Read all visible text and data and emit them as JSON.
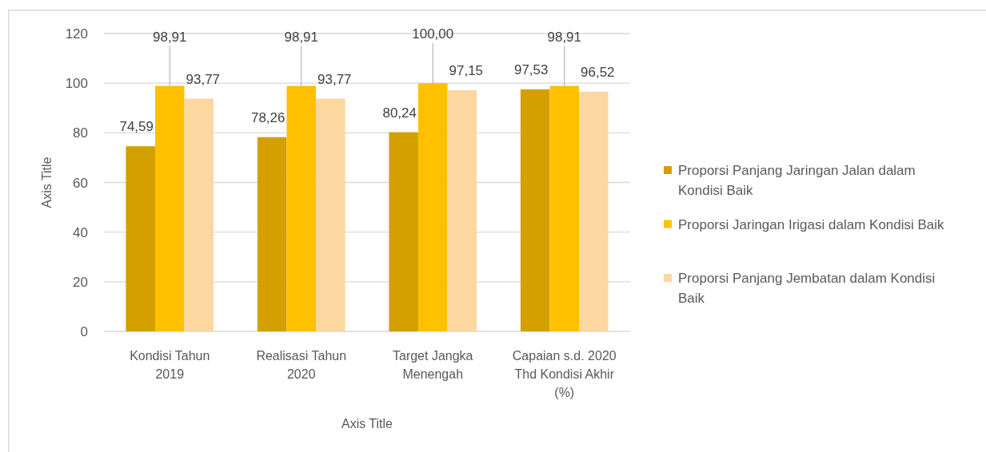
{
  "chart_data": {
    "type": "bar",
    "xlabel": "Axis Title",
    "ylabel": "Axis Title",
    "categories": [
      "Kondisi Tahun 2019",
      "Realisasi Tahun 2020",
      "Target Jangka Menengah",
      "Capaian s.d. 2020 Thd Kondisi Akhir (%)"
    ],
    "series": [
      {
        "name": "Proporsi Panjang Jaringan Jalan dalam Kondisi Baik",
        "color": "#d4a000",
        "values": [
          74.59,
          78.26,
          80.24,
          97.53
        ],
        "value_labels": [
          "74,59",
          "78,26",
          "80,24",
          "97,53"
        ]
      },
      {
        "name": "Proporsi Jaringan Irigasi dalam Kondisi Baik",
        "color": "#ffc000",
        "values": [
          98.91,
          98.91,
          100,
          98.91
        ],
        "value_labels": [
          "98,91",
          "98,91",
          "100,00",
          "98,91"
        ]
      },
      {
        "name": "Proporsi Panjang Jembatan dalam Kondisi Baik",
        "color": "#fdd7a0",
        "values": [
          93.77,
          93.77,
          97.15,
          96.52
        ],
        "value_labels": [
          "93,77",
          "93,77",
          "97,15",
          "96,52"
        ]
      }
    ],
    "ylim": [
      0,
      120
    ],
    "yticks": [
      0,
      20,
      40,
      60,
      80,
      100,
      120
    ],
    "grid": "y",
    "legend": "right"
  }
}
